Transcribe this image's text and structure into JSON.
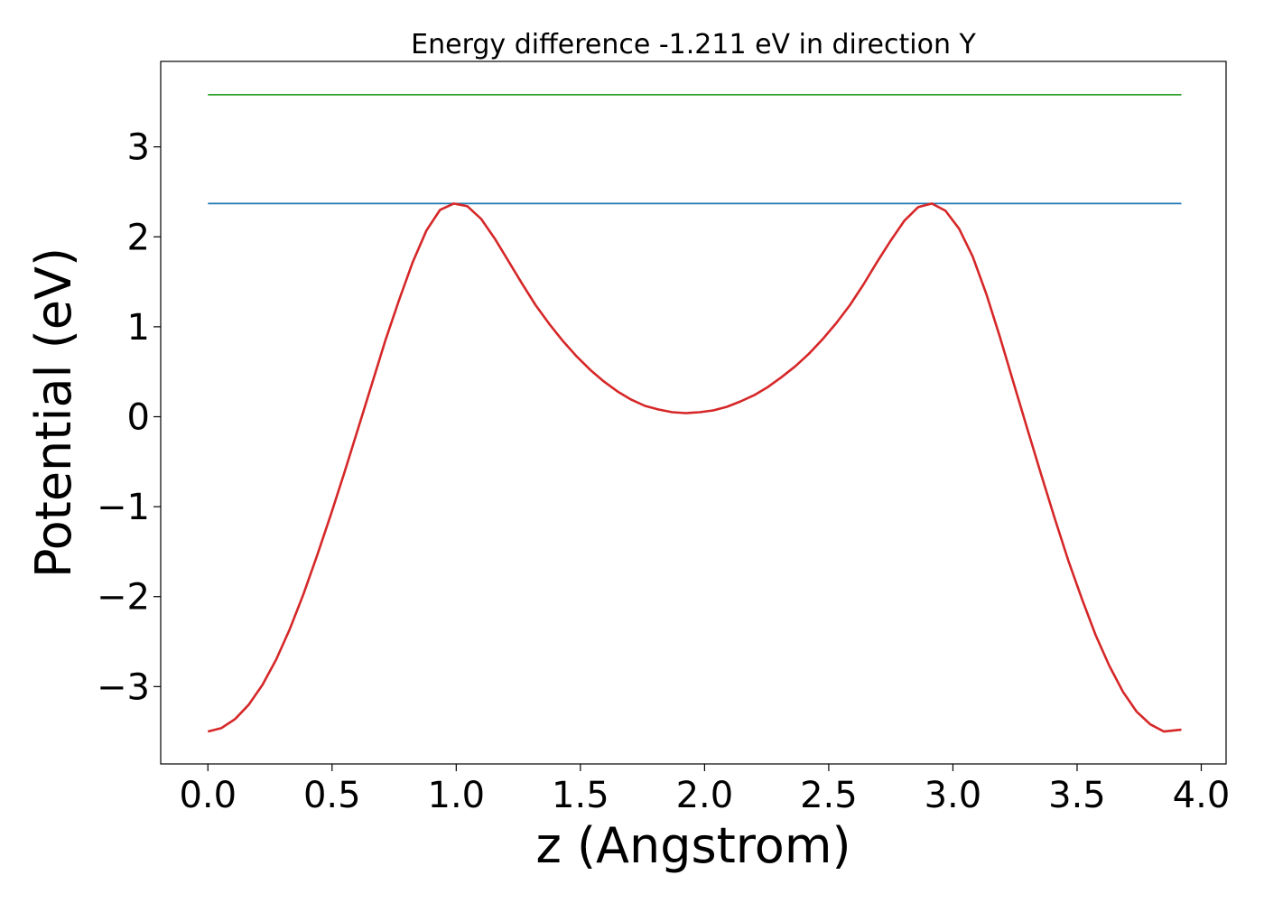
{
  "chart_data": {
    "type": "line",
    "title": "Energy difference -1.211 eV in direction Y",
    "xlabel": "z (Angstrom)",
    "ylabel": "Potential (eV)",
    "xlim": [
      -0.19,
      4.1
    ],
    "ylim": [
      -3.86,
      3.95
    ],
    "xticks": [
      0.0,
      0.5,
      1.0,
      1.5,
      2.0,
      2.5,
      3.0,
      3.5,
      4.0
    ],
    "xtick_labels": [
      "0.0",
      "0.5",
      "1.0",
      "1.5",
      "2.0",
      "2.5",
      "3.0",
      "3.5",
      "4.0"
    ],
    "yticks": [
      -3,
      -2,
      -1,
      0,
      1,
      2,
      3
    ],
    "ytick_labels": [
      "−3",
      "−2",
      "−1",
      "0",
      "1",
      "2",
      "3"
    ],
    "grid": false,
    "series": [
      {
        "color": "#2ca02c",
        "x": [
          0.0,
          3.92
        ],
        "y": [
          3.58,
          3.58
        ]
      },
      {
        "color": "#1f77b4",
        "x": [
          0.0,
          3.92
        ],
        "y": [
          2.37,
          2.37
        ]
      },
      {
        "color": "#d62728",
        "x": [
          0.0,
          0.055,
          0.11,
          0.165,
          0.22,
          0.275,
          0.33,
          0.385,
          0.44,
          0.495,
          0.55,
          0.605,
          0.66,
          0.715,
          0.77,
          0.825,
          0.88,
          0.935,
          0.99,
          1.045,
          1.1,
          1.155,
          1.21,
          1.265,
          1.32,
          1.375,
          1.43,
          1.485,
          1.54,
          1.595,
          1.65,
          1.705,
          1.76,
          1.815,
          1.87,
          1.925,
          1.98,
          2.035,
          2.09,
          2.145,
          2.2,
          2.255,
          2.31,
          2.365,
          2.42,
          2.475,
          2.53,
          2.585,
          2.64,
          2.695,
          2.75,
          2.805,
          2.86,
          2.915,
          2.97,
          3.025,
          3.08,
          3.135,
          3.19,
          3.245,
          3.3,
          3.355,
          3.41,
          3.465,
          3.52,
          3.575,
          3.63,
          3.685,
          3.74,
          3.795,
          3.85,
          3.92
        ],
        "y": [
          -3.5,
          -3.46,
          -3.36,
          -3.2,
          -2.98,
          -2.7,
          -2.36,
          -1.97,
          -1.54,
          -1.09,
          -0.62,
          -0.13,
          0.36,
          0.85,
          1.3,
          1.72,
          2.07,
          2.3,
          2.37,
          2.34,
          2.2,
          1.98,
          1.73,
          1.48,
          1.24,
          1.03,
          0.84,
          0.67,
          0.52,
          0.39,
          0.28,
          0.19,
          0.12,
          0.08,
          0.05,
          0.04,
          0.05,
          0.07,
          0.11,
          0.17,
          0.24,
          0.33,
          0.44,
          0.56,
          0.7,
          0.86,
          1.04,
          1.24,
          1.47,
          1.72,
          1.96,
          2.18,
          2.33,
          2.37,
          2.29,
          2.09,
          1.78,
          1.36,
          0.88,
          0.37,
          -0.14,
          -0.64,
          -1.13,
          -1.6,
          -2.03,
          -2.43,
          -2.77,
          -3.06,
          -3.28,
          -3.42,
          -3.5,
          -3.48
        ]
      }
    ]
  }
}
